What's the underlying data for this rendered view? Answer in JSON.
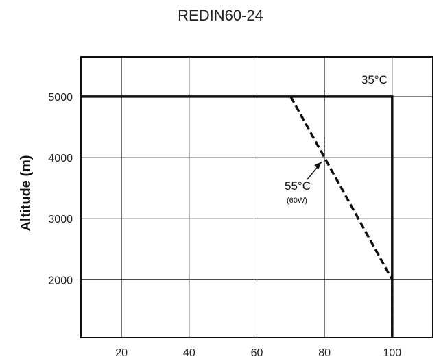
{
  "chart_data": {
    "type": "line",
    "title": "REDIN60-24",
    "xlabel": "",
    "ylabel": "Altitude (m)",
    "xlim": [
      8,
      112
    ],
    "ylim": [
      1050,
      5650
    ],
    "x_ticks": [
      20,
      40,
      60,
      80,
      100
    ],
    "y_ticks": [
      2000,
      3000,
      4000,
      5000
    ],
    "grid": true,
    "series": [
      {
        "name": "35°C",
        "style": "solid",
        "x": [
          8,
          100,
          100
        ],
        "y": [
          5000,
          5000,
          1050
        ]
      },
      {
        "name": "55°C",
        "style": "dashed",
        "x": [
          70,
          100,
          100
        ],
        "y": [
          5000,
          2000,
          1050
        ]
      }
    ],
    "annotations": [
      {
        "text": "35°C",
        "x": 99,
        "y": 5250
      },
      {
        "text": "55°C",
        "subtext": "(60W)",
        "x": 80,
        "y": 4000
      }
    ],
    "colors": {
      "line": "#111111",
      "grid": "#333333"
    }
  }
}
